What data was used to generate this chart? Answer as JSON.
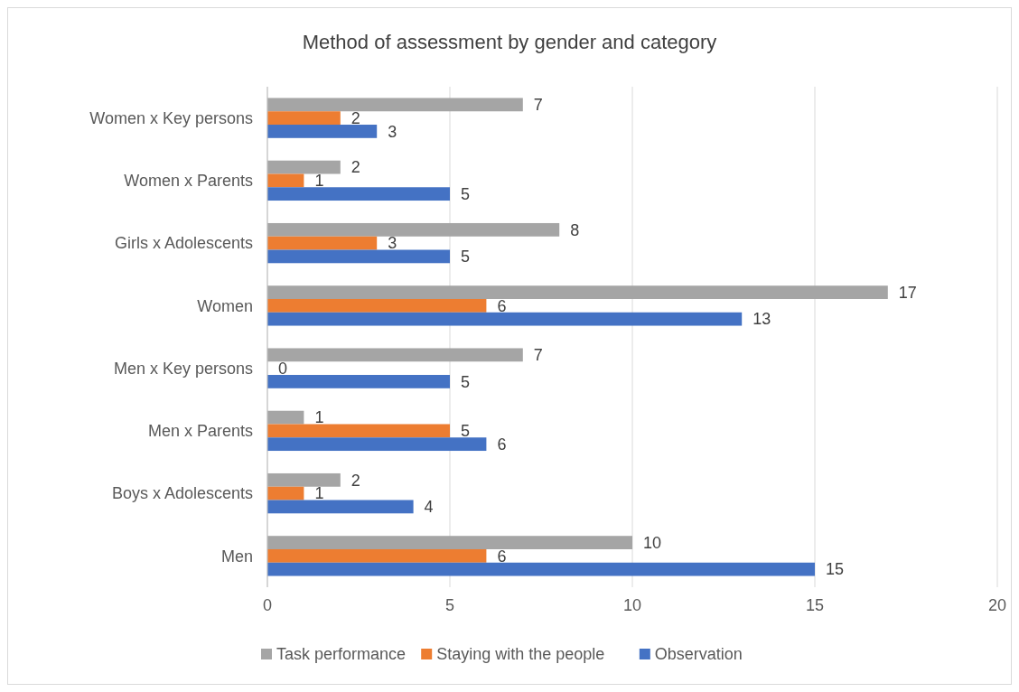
{
  "chart_data": {
    "type": "bar",
    "orientation": "horizontal",
    "title": "Method of assessment by gender and category",
    "categories": [
      "Women x Key persons",
      "Women x Parents",
      "Girls x Adolescents",
      "Women",
      "Men x Key persons",
      "Men x Parents",
      "Boys x Adolescents",
      "Men"
    ],
    "series": [
      {
        "name": "Task performance",
        "color": "#a5a5a5",
        "values": [
          7,
          2,
          8,
          17,
          7,
          1,
          2,
          10
        ]
      },
      {
        "name": "Staying with the people",
        "color": "#ed7d31",
        "values": [
          2,
          1,
          3,
          6,
          0,
          5,
          1,
          6
        ]
      },
      {
        "name": "Observation",
        "color": "#4472c4",
        "values": [
          3,
          5,
          5,
          13,
          5,
          6,
          4,
          15
        ]
      }
    ],
    "xlim": [
      0,
      20
    ],
    "xticks": [
      0,
      5,
      10,
      15,
      20
    ],
    "grid": "x",
    "legend": "bottom",
    "data_labels": true
  }
}
